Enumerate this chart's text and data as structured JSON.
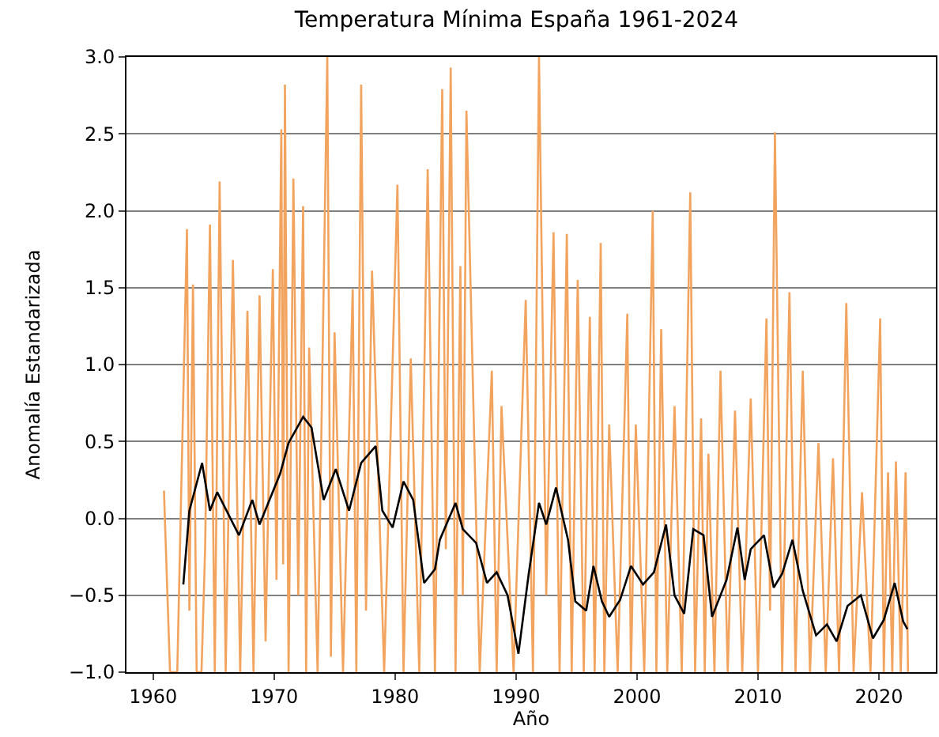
{
  "chart_data": {
    "type": "line",
    "title": "Temperatura Mínima España 1961-2024",
    "xlabel": "Año",
    "ylabel": "Anomalía Estandarizada",
    "xlim": [
      1957.8,
      2024.7
    ],
    "xticks": [
      1960,
      1970,
      1980,
      1990,
      2000,
      2010,
      2020
    ],
    "ylim": [
      -1.0,
      3.0
    ],
    "yticks": [
      {
        "value": -1.0,
        "label": "−1.0"
      },
      {
        "value": -0.5,
        "label": "−0.5"
      },
      {
        "value": 0.0,
        "label": "0.0"
      },
      {
        "value": 0.5,
        "label": "0.5"
      },
      {
        "value": 1.0,
        "label": "1.0"
      },
      {
        "value": 1.5,
        "label": "1.5"
      },
      {
        "value": 2.0,
        "label": "2.0"
      },
      {
        "value": 2.5,
        "label": "2.5"
      },
      {
        "value": 3.0,
        "label": "3.0"
      }
    ],
    "grid": "y",
    "series": [
      {
        "color": "#f2a35e",
        "x": [
          1960.9,
          1961.4,
          1962.0,
          1962.8,
          1963.0,
          1963.3,
          1963.6,
          1964.0,
          1964.3,
          1964.7,
          1965.1,
          1965.5,
          1966.0,
          1966.6,
          1967.2,
          1967.8,
          1968.3,
          1968.8,
          1969.3,
          1969.9,
          1970.2,
          1970.6,
          1970.75,
          1970.9,
          1971.2,
          1971.6,
          1972.0,
          1972.4,
          1972.65,
          1972.9,
          1973.6,
          1974.4,
          1974.7,
          1975.0,
          1975.7,
          1976.5,
          1976.8,
          1977.2,
          1977.6,
          1978.1,
          1979.1,
          1980.2,
          1980.7,
          1981.3,
          1982.0,
          1982.7,
          1983.3,
          1983.9,
          1984.2,
          1984.6,
          1985.0,
          1985.4,
          1985.6,
          1985.9,
          1987.0,
          1988.0,
          1988.4,
          1988.8,
          1989.8,
          1990.8,
          1991.4,
          1991.9,
          1992.5,
          1993.1,
          1993.6,
          1994.2,
          1994.6,
          1995.1,
          1995.6,
          1996.1,
          1996.5,
          1997.0,
          1997.3,
          1997.7,
          1998.4,
          1999.2,
          1999.5,
          1999.9,
          2000.6,
          2001.3,
          2001.6,
          2002.0,
          2002.5,
          2003.1,
          2003.7,
          2004.4,
          2004.8,
          2005.3,
          2005.6,
          2005.9,
          2006.4,
          2006.9,
          2007.5,
          2008.1,
          2008.7,
          2009.4,
          2010.0,
          2010.7,
          2011.0,
          2011.4,
          2012.0,
          2012.6,
          2013.1,
          2013.7,
          2014.3,
          2015.0,
          2015.6,
          2016.2,
          2016.7,
          2017.3,
          2017.9,
          2018.6,
          2019.3,
          2020.1,
          2020.4,
          2020.75,
          2021.1,
          2021.4,
          2021.8,
          2022.2,
          2022.4
        ],
        "values": [
          0.18,
          -1.0,
          -1.0,
          1.88,
          -0.6,
          1.52,
          -1.0,
          -1.0,
          -0.2,
          1.91,
          -1.0,
          2.19,
          -1.0,
          1.68,
          -1.0,
          1.35,
          -1.0,
          1.45,
          -0.8,
          1.62,
          -0.4,
          2.53,
          -0.3,
          2.82,
          -1.0,
          2.21,
          -0.5,
          2.03,
          -1.0,
          1.11,
          -1.0,
          3.0,
          -0.9,
          1.21,
          -1.0,
          1.49,
          -1.0,
          2.82,
          -0.6,
          1.61,
          -1.0,
          2.17,
          -1.0,
          1.04,
          -1.0,
          2.27,
          -1.0,
          2.79,
          -0.2,
          2.93,
          -1.0,
          1.64,
          -0.5,
          2.65,
          -1.0,
          0.96,
          -1.0,
          0.73,
          -1.0,
          1.42,
          -1.0,
          3.0,
          -0.5,
          1.86,
          -1.0,
          1.85,
          -1.0,
          1.55,
          -1.0,
          1.31,
          -1.0,
          1.79,
          -1.0,
          0.61,
          -1.0,
          1.33,
          -1.0,
          0.61,
          -1.0,
          2.0,
          -1.0,
          1.23,
          -1.0,
          0.73,
          -1.0,
          2.12,
          -1.0,
          0.65,
          -1.0,
          0.42,
          -1.0,
          0.96,
          -1.0,
          0.7,
          -1.0,
          0.78,
          -1.0,
          1.3,
          -0.6,
          2.51,
          -1.0,
          1.47,
          -1.0,
          0.96,
          -1.0,
          0.49,
          -1.0,
          0.39,
          -1.0,
          1.4,
          -1.0,
          0.17,
          -1.0,
          1.3,
          -1.0,
          0.3,
          -1.0,
          0.37,
          -1.0,
          0.3,
          -1.0
        ]
      },
      {
        "color": "#000000",
        "x": [
          1962.5,
          1963.0,
          1964.05,
          1964.7,
          1965.3,
          1967.1,
          1968.2,
          1968.8,
          1970.5,
          1971.2,
          1972.4,
          1973.1,
          1974.1,
          1975.1,
          1976.2,
          1977.2,
          1978.4,
          1978.95,
          1979.8,
          1980.7,
          1981.5,
          1982.4,
          1983.3,
          1983.7,
          1985.0,
          1985.6,
          1986.7,
          1987.6,
          1988.4,
          1989.3,
          1990.2,
          1991.05,
          1991.9,
          1992.5,
          1993.3,
          1994.3,
          1994.9,
          1995.8,
          1996.4,
          1997.1,
          1997.7,
          1998.6,
          1999.5,
          2000.5,
          2001.4,
          2002.4,
          2003.1,
          2003.9,
          2004.65,
          2005.5,
          2006.2,
          2007.4,
          2008.3,
          2008.9,
          2009.4,
          2010.5,
          2011.3,
          2012.0,
          2012.85,
          2013.7,
          2014.8,
          2015.7,
          2016.5,
          2017.4,
          2018.5,
          2019.5,
          2020.4,
          2021.3,
          2022.0,
          2022.35
        ],
        "values": [
          -0.43,
          0.05,
          0.36,
          0.05,
          0.17,
          -0.11,
          0.12,
          -0.04,
          0.29,
          0.49,
          0.66,
          0.59,
          0.12,
          0.32,
          0.05,
          0.36,
          0.47,
          0.05,
          -0.06,
          0.24,
          0.12,
          -0.42,
          -0.33,
          -0.14,
          0.1,
          -0.07,
          -0.16,
          -0.42,
          -0.35,
          -0.5,
          -0.88,
          -0.36,
          0.1,
          -0.04,
          0.2,
          -0.14,
          -0.54,
          -0.6,
          -0.31,
          -0.54,
          -0.64,
          -0.53,
          -0.31,
          -0.43,
          -0.35,
          -0.04,
          -0.5,
          -0.62,
          -0.07,
          -0.11,
          -0.64,
          -0.4,
          -0.06,
          -0.4,
          -0.2,
          -0.11,
          -0.45,
          -0.36,
          -0.14,
          -0.47,
          -0.76,
          -0.69,
          -0.8,
          -0.57,
          -0.5,
          -0.78,
          -0.66,
          -0.42,
          -0.67,
          -0.72
        ]
      }
    ]
  }
}
